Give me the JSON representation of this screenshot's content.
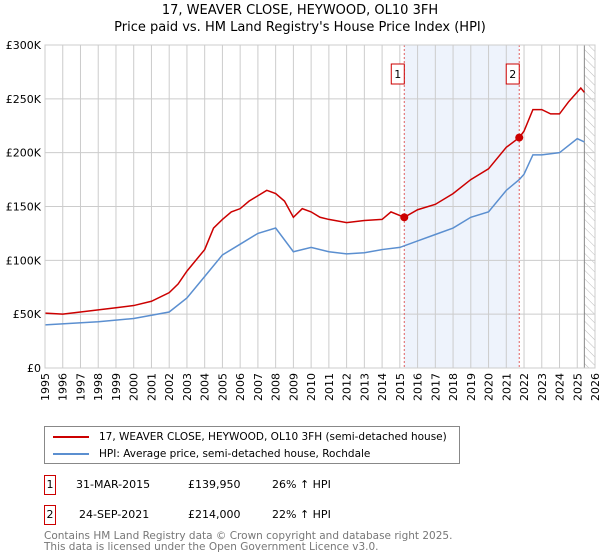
{
  "chart_data": {
    "type": "line",
    "title": "17, WEAVER CLOSE, HEYWOOD, OL10 3FH",
    "subtitle": "Price paid vs. HM Land Registry's House Price Index (HPI)",
    "xlim": [
      1995,
      2026
    ],
    "ylim": [
      0,
      300000
    ],
    "x_ticks": [
      "1995",
      "1996",
      "1997",
      "1998",
      "1999",
      "2000",
      "2001",
      "2002",
      "2003",
      "2004",
      "2005",
      "2006",
      "2007",
      "2008",
      "2009",
      "2010",
      "2011",
      "2012",
      "2013",
      "2014",
      "2015",
      "2016",
      "2017",
      "2018",
      "2019",
      "2020",
      "2021",
      "2022",
      "2023",
      "2024",
      "2025",
      "2026"
    ],
    "y_ticks": [
      {
        "v": 0,
        "l": "£0"
      },
      {
        "v": 50000,
        "l": "£50K"
      },
      {
        "v": 100000,
        "l": "£100K"
      },
      {
        "v": 150000,
        "l": "£150K"
      },
      {
        "v": 200000,
        "l": "£200K"
      },
      {
        "v": 250000,
        "l": "£250K"
      },
      {
        "v": 300000,
        "l": "£300K"
      }
    ],
    "grid": true,
    "shaded_range": [
      2015.25,
      2021.73
    ],
    "hatched_from": 2025.4,
    "series": [
      {
        "name": "17, WEAVER CLOSE, HEYWOOD, OL10 3FH (semi-detached house)",
        "color": "#cc0000",
        "x": [
          1995,
          1996,
          1997,
          1998,
          1999,
          2000,
          2001,
          2002,
          2002.5,
          2003,
          2004,
          2004.5,
          2005,
          2005.5,
          2006,
          2006.5,
          2007,
          2007.5,
          2008,
          2008.5,
          2009,
          2009.5,
          2010,
          2010.5,
          2011,
          2012,
          2013,
          2014,
          2014.5,
          2015.25,
          2016,
          2017,
          2018,
          2019,
          2020,
          2021,
          2021.73,
          2022,
          2022.5,
          2023,
          2023.5,
          2024,
          2024.5,
          2025.2,
          2025.4
        ],
        "y": [
          51000,
          50000,
          52000,
          54000,
          56000,
          58000,
          62000,
          70000,
          78000,
          90000,
          110000,
          130000,
          138000,
          145000,
          148000,
          155000,
          160000,
          165000,
          162000,
          155000,
          140000,
          148000,
          145000,
          140000,
          138000,
          135000,
          137000,
          138000,
          145000,
          139950,
          147000,
          152000,
          162000,
          175000,
          185000,
          205000,
          214000,
          220000,
          240000,
          240000,
          236000,
          236000,
          247000,
          260000,
          256000
        ]
      },
      {
        "name": "HPI: Average price, semi-detached house, Rochdale",
        "color": "#5b8fd0",
        "x": [
          1995,
          1998,
          2000,
          2002,
          2003,
          2004,
          2005,
          2006,
          2007,
          2008,
          2009,
          2010,
          2011,
          2012,
          2013,
          2014,
          2015,
          2016,
          2017,
          2018,
          2019,
          2020,
          2021,
          2021.73,
          2022,
          2022.5,
          2023,
          2024,
          2025,
          2025.4
        ],
        "y": [
          40000,
          43000,
          46000,
          52000,
          65000,
          85000,
          105000,
          115000,
          125000,
          130000,
          108000,
          112000,
          108000,
          106000,
          107000,
          110000,
          112000,
          118000,
          124000,
          130000,
          140000,
          145000,
          165000,
          175000,
          180000,
          198000,
          198000,
          200000,
          213000,
          210000
        ]
      }
    ],
    "annotations": [
      {
        "label": "1",
        "x": 2015.25,
        "y": 139950
      },
      {
        "label": "2",
        "x": 2021.73,
        "y": 214000
      }
    ]
  },
  "legend": {
    "red": "17, WEAVER CLOSE, HEYWOOD, OL10 3FH (semi-detached house)",
    "blue": "HPI: Average price, semi-detached house, Rochdale"
  },
  "sales": [
    {
      "n": "1",
      "date": "31-MAR-2015",
      "price": "£139,950",
      "hpi": "26% ↑ HPI"
    },
    {
      "n": "2",
      "date": "24-SEP-2021",
      "price": "£214,000",
      "hpi": "22% ↑ HPI"
    }
  ],
  "footer": [
    "Contains HM Land Registry data © Crown copyright and database right 2025.",
    "This data is licensed under the Open Government Licence v3.0."
  ]
}
